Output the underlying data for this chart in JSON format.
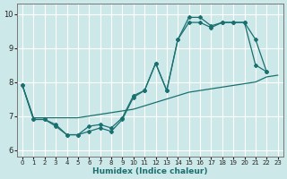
{
  "xlabel": "Humidex (Indice chaleur)",
  "xlim": [
    -0.5,
    23.5
  ],
  "ylim": [
    5.8,
    10.3
  ],
  "yticks": [
    6,
    7,
    8,
    9,
    10
  ],
  "xticks": [
    0,
    1,
    2,
    3,
    4,
    5,
    6,
    7,
    8,
    9,
    10,
    11,
    12,
    13,
    14,
    15,
    16,
    17,
    18,
    19,
    20,
    21,
    22,
    23
  ],
  "background_color": "#cde8e8",
  "grid_color": "#ffffff",
  "line_color": "#1a7070",
  "hours": [
    0,
    1,
    2,
    3,
    4,
    5,
    6,
    7,
    8,
    9,
    10,
    11,
    12,
    13,
    14,
    15,
    16,
    17,
    18,
    19,
    20,
    21,
    22,
    23
  ],
  "line_jagged1": [
    7.9,
    6.9,
    6.9,
    6.75,
    6.45,
    6.45,
    6.55,
    6.65,
    6.55,
    6.9,
    7.55,
    7.75,
    8.55,
    7.75,
    9.25,
    9.75,
    9.75,
    9.6,
    9.75,
    9.75,
    9.75,
    9.25,
    8.3,
    null
  ],
  "line_jagged2": [
    7.9,
    6.9,
    6.9,
    6.7,
    6.45,
    6.45,
    6.7,
    6.75,
    6.65,
    6.95,
    7.6,
    7.75,
    8.55,
    7.75,
    9.25,
    9.9,
    9.9,
    9.65,
    9.75,
    9.75,
    9.75,
    8.5,
    8.3,
    null
  ],
  "line_straight": [
    7.9,
    6.95,
    6.95,
    6.95,
    6.95,
    6.95,
    7.0,
    7.05,
    7.1,
    7.15,
    7.2,
    7.3,
    7.4,
    7.5,
    7.6,
    7.7,
    7.75,
    7.8,
    7.85,
    7.9,
    7.95,
    8.0,
    8.15,
    8.2
  ]
}
